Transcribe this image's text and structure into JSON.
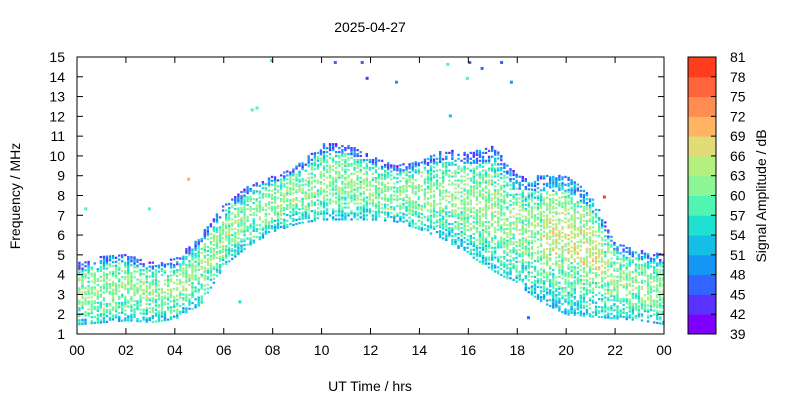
{
  "chart_data": {
    "type": "heatmap",
    "title": "2025-04-27",
    "xlabel": "UT Time / hrs",
    "ylabel": "Frequency / MHz",
    "colorbar_label": "Signal Amplitude / dB",
    "xlim": [
      0,
      24
    ],
    "ylim": [
      1,
      15
    ],
    "xticks": [
      "00",
      "02",
      "04",
      "06",
      "08",
      "10",
      "12",
      "14",
      "16",
      "18",
      "20",
      "22",
      "00"
    ],
    "yticks": [
      1,
      2,
      3,
      4,
      5,
      6,
      7,
      8,
      9,
      10,
      11,
      12,
      13,
      14,
      15
    ],
    "colorbar": {
      "min": 39,
      "max": 81,
      "ticks": [
        39,
        42,
        45,
        48,
        51,
        54,
        57,
        60,
        63,
        66,
        69,
        72,
        75,
        78,
        81
      ],
      "colors": [
        "#8000ff",
        "#5a32ff",
        "#3264ff",
        "#1496f5",
        "#14bee6",
        "#1ee1d2",
        "#50f5b4",
        "#8cf596",
        "#b4f080",
        "#e1dc78",
        "#ffb464",
        "#ff8c50",
        "#ff643c",
        "#ff3c1e"
      ]
    },
    "envelope": {
      "description": "lower/upper frequency limits (MHz) of the observed traces vs UT hour",
      "hours": [
        0,
        1,
        2,
        3,
        4,
        5,
        6,
        7,
        8,
        9,
        10,
        11,
        12,
        13,
        14,
        15,
        16,
        17,
        18,
        19,
        20,
        21,
        22,
        23,
        24
      ],
      "lower": [
        1.5,
        1.6,
        1.7,
        1.6,
        1.8,
        2.5,
        4.5,
        5.5,
        6.2,
        6.6,
        6.8,
        6.8,
        6.8,
        6.7,
        6.3,
        5.8,
        5.0,
        4.2,
        3.5,
        2.6,
        2.0,
        1.9,
        1.8,
        1.7,
        1.5
      ],
      "upper": [
        4.6,
        5.0,
        5.0,
        4.6,
        4.8,
        6.0,
        7.6,
        8.5,
        9.0,
        9.6,
        10.6,
        10.6,
        10.0,
        9.5,
        9.8,
        10.3,
        10.2,
        10.5,
        9.0,
        9.0,
        9.0,
        8.0,
        5.6,
        5.2,
        5.0
      ]
    },
    "isolated_points": [
      {
        "x": 0.3,
        "y": 7.4,
        "dB": 57
      },
      {
        "x": 2.9,
        "y": 7.4,
        "dB": 57
      },
      {
        "x": 4.5,
        "y": 8.9,
        "dB": 69
      },
      {
        "x": 7.1,
        "y": 12.4,
        "dB": 57
      },
      {
        "x": 7.3,
        "y": 12.5,
        "dB": 57
      },
      {
        "x": 7.9,
        "y": 14.9,
        "dB": 54
      },
      {
        "x": 10.5,
        "y": 14.8,
        "dB": 45
      },
      {
        "x": 11.6,
        "y": 14.8,
        "dB": 45
      },
      {
        "x": 11.8,
        "y": 14.0,
        "dB": 42
      },
      {
        "x": 13.0,
        "y": 13.8,
        "dB": 48
      },
      {
        "x": 15.1,
        "y": 14.7,
        "dB": 57
      },
      {
        "x": 15.2,
        "y": 12.1,
        "dB": 51
      },
      {
        "x": 15.9,
        "y": 14.0,
        "dB": 57
      },
      {
        "x": 16.0,
        "y": 14.8,
        "dB": 45
      },
      {
        "x": 16.5,
        "y": 14.5,
        "dB": 45
      },
      {
        "x": 17.3,
        "y": 14.8,
        "dB": 45
      },
      {
        "x": 17.7,
        "y": 13.8,
        "dB": 48
      },
      {
        "x": 21.5,
        "y": 8.0,
        "dB": 78
      },
      {
        "x": 18.4,
        "y": 1.9,
        "dB": 45
      },
      {
        "x": 6.6,
        "y": 2.7,
        "dB": 54
      }
    ]
  }
}
